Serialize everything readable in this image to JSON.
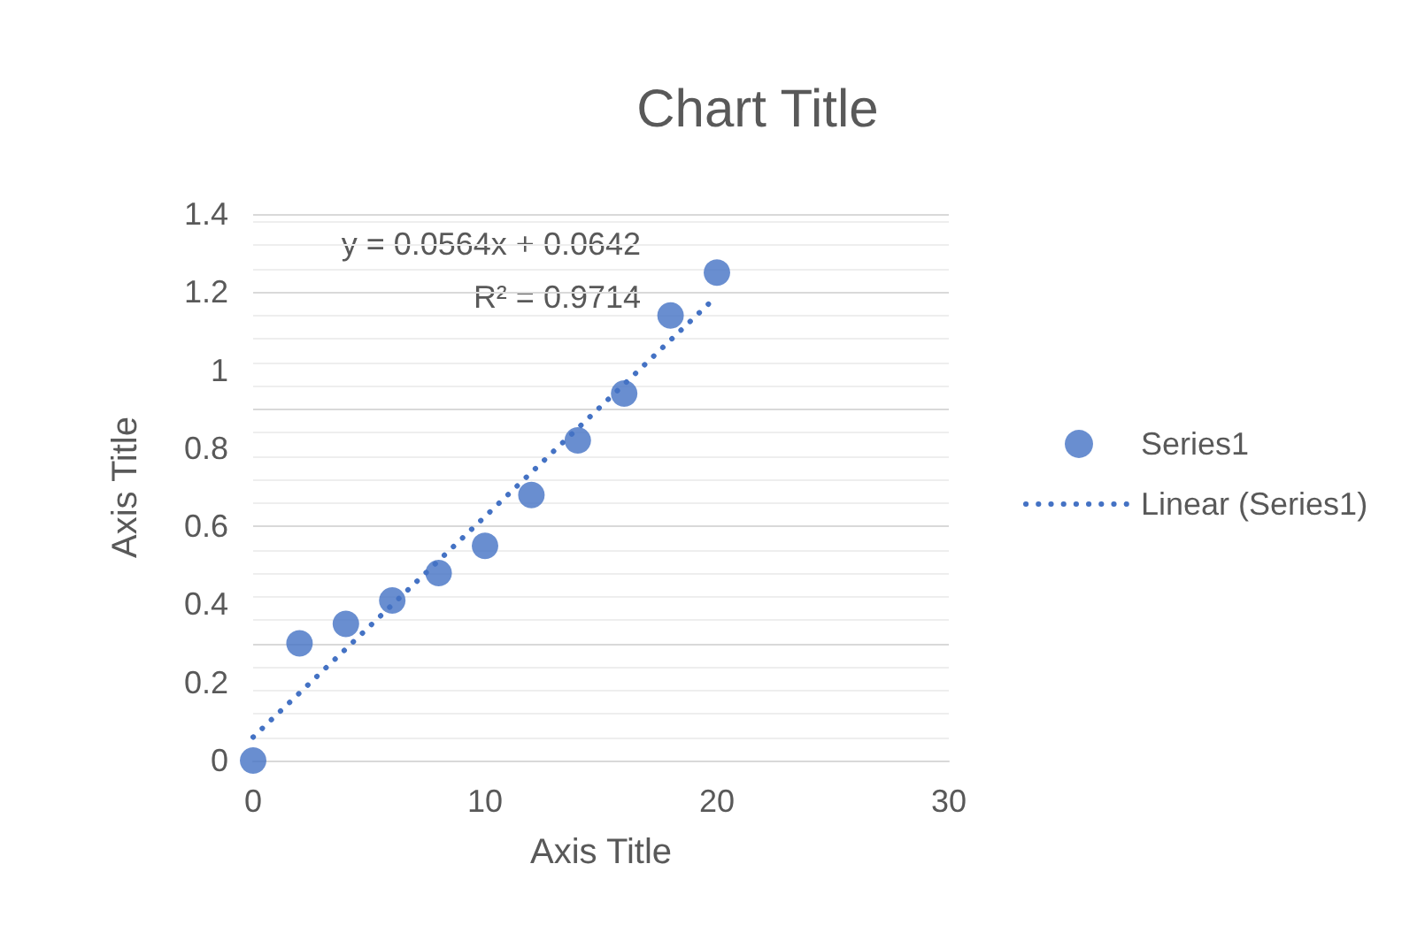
{
  "chart_data": {
    "type": "scatter",
    "title": "Chart Title",
    "xlabel": "Axis Title",
    "ylabel": "Axis Title",
    "x": [
      0,
      2,
      4,
      6,
      8,
      10,
      12,
      14,
      16,
      18,
      20
    ],
    "series": [
      {
        "name": "Series1",
        "color": "#4472c4",
        "marker": "circle",
        "values": [
          0,
          0.3,
          0.35,
          0.41,
          0.48,
          0.55,
          0.68,
          0.82,
          0.94,
          1.14,
          1.25
        ]
      },
      {
        "name": "Linear (Series1)",
        "type": "line",
        "color": "#4472c4",
        "line_style": "dotted",
        "marker": "none",
        "x": [
          0,
          20
        ],
        "values": [
          0.06,
          1.19
        ]
      }
    ],
    "annotations": [
      "y = 0.0564x + 0.0642",
      "R² = 0.9714"
    ],
    "xlim": [
      0,
      30
    ],
    "xticks": [
      0,
      10,
      20,
      30
    ],
    "ylim": [
      0,
      1.4
    ],
    "yticks": [
      0,
      0.2,
      0.4,
      0.6,
      0.8,
      1,
      1.2,
      1.4
    ],
    "grid": "y",
    "legend": "right"
  }
}
